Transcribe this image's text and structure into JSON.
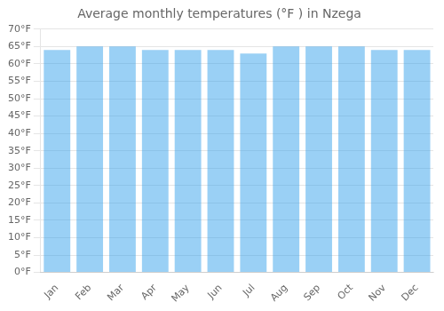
{
  "chart_data": {
    "type": "bar",
    "title": "Average monthly temperatures (°F ) in Nzega",
    "categories": [
      "Jan",
      "Feb",
      "Mar",
      "Apr",
      "May",
      "Jun",
      "Jul",
      "Aug",
      "Sep",
      "Oct",
      "Nov",
      "Dec"
    ],
    "values": [
      64,
      65,
      65,
      64,
      64,
      64,
      63,
      65,
      65,
      65,
      64,
      64
    ],
    "ylim": [
      0,
      70
    ],
    "yticks": [
      {
        "value": 0,
        "label": "0°F"
      },
      {
        "value": 5,
        "label": "5°F"
      },
      {
        "value": 10,
        "label": "10°F"
      },
      {
        "value": 15,
        "label": "15°F"
      },
      {
        "value": 20,
        "label": "20°F"
      },
      {
        "value": 25,
        "label": "25°F"
      },
      {
        "value": 30,
        "label": "30°F"
      },
      {
        "value": 35,
        "label": "35°F"
      },
      {
        "value": 40,
        "label": "40°F"
      },
      {
        "value": 45,
        "label": "45°F"
      },
      {
        "value": 50,
        "label": "50°F"
      },
      {
        "value": 55,
        "label": "55°F"
      },
      {
        "value": 60,
        "label": "60°F"
      },
      {
        "value": 65,
        "label": "65°F"
      },
      {
        "value": 70,
        "label": "70°F"
      }
    ],
    "grid": true
  }
}
